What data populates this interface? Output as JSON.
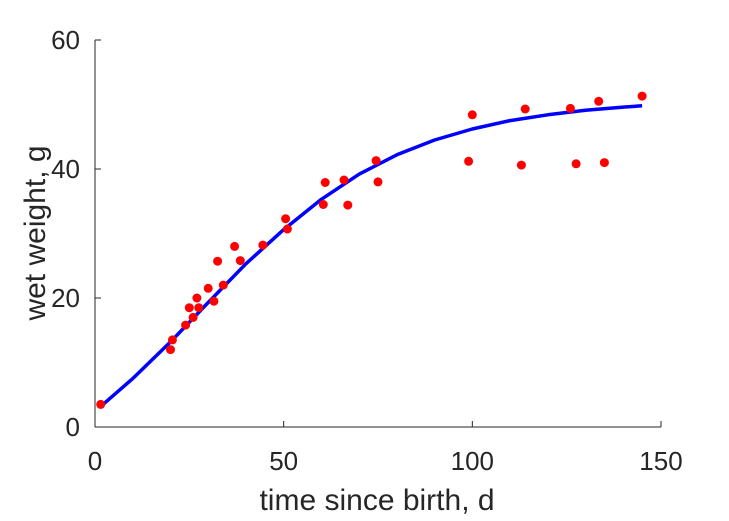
{
  "chart_data": {
    "type": "scatter",
    "title": "",
    "xlabel": "time since birth, d",
    "ylabel": "wet weight, g",
    "xlim": [
      0,
      150
    ],
    "ylim": [
      0,
      60
    ],
    "xticks": [
      "0",
      "50",
      "100",
      "150"
    ],
    "yticks": [
      "0",
      "20",
      "40",
      "60"
    ],
    "grid": false,
    "series": [
      {
        "type": "scatter",
        "color": "#ff0000",
        "points": [
          [
            1.5,
            3.5
          ],
          [
            20,
            12
          ],
          [
            20.5,
            13.5
          ],
          [
            24,
            15.8
          ],
          [
            25,
            18.5
          ],
          [
            26,
            17
          ],
          [
            27,
            20
          ],
          [
            27.5,
            18.5
          ],
          [
            30,
            21.5
          ],
          [
            31.5,
            19.5
          ],
          [
            32.5,
            25.7
          ],
          [
            34,
            22
          ],
          [
            37,
            28
          ],
          [
            38.5,
            25.8
          ],
          [
            44.5,
            28.2
          ],
          [
            50.5,
            32.3
          ],
          [
            51,
            30.7
          ],
          [
            60.5,
            34.5
          ],
          [
            61,
            37.9
          ],
          [
            66,
            38.3
          ],
          [
            67,
            34.4
          ],
          [
            74.5,
            41.3
          ],
          [
            75,
            38
          ],
          [
            99,
            41.2
          ],
          [
            100,
            48.4
          ],
          [
            113,
            40.6
          ],
          [
            114,
            49.3
          ],
          [
            126,
            49.4
          ],
          [
            127.5,
            40.8
          ],
          [
            133.5,
            50.5
          ],
          [
            135,
            41
          ],
          [
            145,
            51.3
          ]
        ]
      },
      {
        "type": "line",
        "color": "#0000ff",
        "points": [
          [
            1.5,
            3.2
          ],
          [
            10,
            7.5
          ],
          [
            20,
            13.2
          ],
          [
            30,
            19.3
          ],
          [
            40,
            25.3
          ],
          [
            50,
            30.6
          ],
          [
            60,
            35.3
          ],
          [
            70,
            39.2
          ],
          [
            80,
            42.2
          ],
          [
            90,
            44.5
          ],
          [
            100,
            46.2
          ],
          [
            110,
            47.5
          ],
          [
            120,
            48.4
          ],
          [
            130,
            49.1
          ],
          [
            140,
            49.6
          ],
          [
            145,
            49.8
          ]
        ]
      }
    ]
  }
}
